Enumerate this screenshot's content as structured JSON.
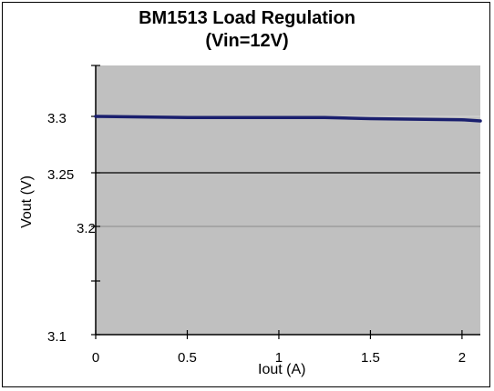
{
  "chart_data": {
    "type": "line",
    "title": "BM1513 Load Regulation",
    "subtitle": "(Vin=12V)",
    "xlabel": "Iout (A)",
    "ylabel": "Vout (V)",
    "xlim": [
      0,
      2.1
    ],
    "x_ticks": [
      0,
      0.5,
      1,
      1.5,
      2
    ],
    "x_tick_labels": [
      "0",
      "0.5",
      "1",
      "1.5",
      "2"
    ],
    "y_ticks": [
      {
        "label": "3.3",
        "value": 3.3
      },
      {
        "label": "3.25",
        "value": 3.25
      },
      {
        "label": "3.2",
        "value": 3.2
      },
      {
        "label": "3.1",
        "value": 3.1
      }
    ],
    "grid": true,
    "plot_background": "#c0c0c0",
    "line_color": "#1a1f6e",
    "series": [
      {
        "x": [
          0,
          0.5,
          1.0,
          1.25,
          1.5,
          2.0,
          2.1
        ],
        "y": [
          3.3,
          3.299,
          3.299,
          3.299,
          3.298,
          3.297,
          3.296
        ]
      }
    ]
  }
}
